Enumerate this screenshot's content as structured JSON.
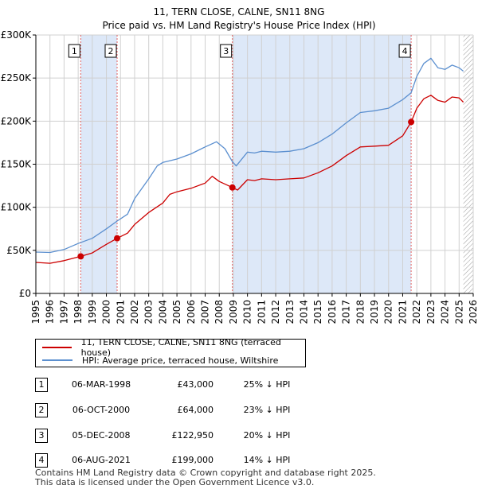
{
  "chart_data": {
    "type": "line",
    "title": "11, TERN CLOSE, CALNE, SN11 8NG",
    "subtitle": "Price paid vs. HM Land Registry's House Price Index (HPI)",
    "xlabel": "",
    "ylabel": "",
    "xlim": [
      1995,
      2026
    ],
    "ylim": [
      0,
      300000
    ],
    "x_ticks": [
      "1995",
      "1996",
      "1997",
      "1998",
      "1999",
      "2000",
      "2001",
      "2002",
      "2003",
      "2004",
      "2005",
      "2006",
      "2007",
      "2008",
      "2009",
      "2010",
      "2011",
      "2012",
      "2013",
      "2014",
      "2015",
      "2016",
      "2017",
      "2018",
      "2019",
      "2020",
      "2021",
      "2022",
      "2023",
      "2024",
      "2025",
      "2026"
    ],
    "y_ticks": [
      {
        "value": 0,
        "label": "£0"
      },
      {
        "value": 50000,
        "label": "£50K"
      },
      {
        "value": 100000,
        "label": "£100K"
      },
      {
        "value": 150000,
        "label": "£150K"
      },
      {
        "value": 200000,
        "label": "£200K"
      },
      {
        "value": 250000,
        "label": "£250K"
      },
      {
        "value": 300000,
        "label": "£300K"
      }
    ],
    "grid": true,
    "series": [
      {
        "name": "11, TERN CLOSE, CALNE, SN11 8NG (terraced house)",
        "color": "#cc0000",
        "x": [
          1995.0,
          1996.0,
          1997.0,
          1998.18,
          1999.0,
          2000.0,
          2000.76,
          2001.5,
          2002.0,
          2003.0,
          2004.0,
          2004.5,
          2005.0,
          2006.0,
          2007.0,
          2007.5,
          2008.0,
          2008.93,
          2009.3,
          2010.0,
          2010.5,
          2011.0,
          2012.0,
          2013.0,
          2014.0,
          2015.0,
          2016.0,
          2017.0,
          2018.0,
          2019.0,
          2020.0,
          2021.0,
          2021.6,
          2022.0,
          2022.5,
          2023.0,
          2023.5,
          2024.0,
          2024.5,
          2025.0,
          2025.3
        ],
        "values": [
          36000,
          35000,
          38000,
          43000,
          47000,
          57000,
          64000,
          70000,
          80000,
          94000,
          105000,
          115000,
          118000,
          122000,
          128000,
          136000,
          130000,
          122950,
          120000,
          132000,
          131000,
          133000,
          132000,
          133000,
          134000,
          140000,
          148000,
          160000,
          170000,
          171000,
          172000,
          183000,
          199000,
          215000,
          226000,
          230000,
          224000,
          222000,
          228000,
          227000,
          222000
        ]
      },
      {
        "name": "HPI: Average price, terraced house, Wiltshire",
        "color": "#5b8fcf",
        "x": [
          1995.0,
          1996.0,
          1997.0,
          1998.0,
          1999.0,
          2000.0,
          2000.76,
          2001.5,
          2002.0,
          2003.0,
          2003.6,
          2004.0,
          2005.0,
          2006.0,
          2007.0,
          2007.8,
          2008.4,
          2008.93,
          2009.2,
          2010.0,
          2010.5,
          2011.0,
          2012.0,
          2013.0,
          2014.0,
          2015.0,
          2016.0,
          2017.0,
          2018.0,
          2019.0,
          2020.0,
          2021.0,
          2021.6,
          2022.0,
          2022.5,
          2023.0,
          2023.5,
          2024.0,
          2024.5,
          2025.0,
          2025.3
        ],
        "values": [
          48000,
          47500,
          51000,
          58000,
          64000,
          75000,
          84000,
          92000,
          110000,
          133000,
          148000,
          152000,
          156000,
          162000,
          170000,
          176000,
          168000,
          153000,
          148000,
          164000,
          163000,
          165000,
          164000,
          165000,
          168000,
          175000,
          185000,
          198000,
          210000,
          212000,
          215000,
          225000,
          233000,
          252000,
          267000,
          273000,
          262000,
          260000,
          265000,
          262000,
          258000
        ]
      }
    ],
    "sales": [
      {
        "num": "1",
        "x": 1998.18,
        "value": 43000,
        "date": "06-MAR-1998",
        "price": "£43,000",
        "hpi": "25% ↓ HPI"
      },
      {
        "num": "2",
        "x": 2000.76,
        "value": 64000,
        "date": "06-OCT-2000",
        "price": "£64,000",
        "hpi": "23% ↓ HPI"
      },
      {
        "num": "3",
        "x": 2008.93,
        "value": 122950,
        "date": "05-DEC-2008",
        "price": "£122,950",
        "hpi": "20% ↓ HPI"
      },
      {
        "num": "4",
        "x": 2021.6,
        "value": 199000,
        "date": "06-AUG-2021",
        "price": "£199,000",
        "hpi": "14% ↓ HPI"
      }
    ],
    "shaded_periods": [
      [
        1998.18,
        2000.76
      ],
      [
        2008.93,
        2021.6
      ]
    ],
    "hatch_from": 2025.3,
    "colors": {
      "property": "#cc0000",
      "hpi": "#5b8fcf",
      "vline": "#e06060",
      "shade": "#dde8f8",
      "grid": "#d0d0d0"
    }
  },
  "legend": {
    "property_label": "11, TERN CLOSE, CALNE, SN11 8NG (terraced house)",
    "hpi_label": "HPI: Average price, terraced house, Wiltshire"
  },
  "footer": {
    "line1": "Contains HM Land Registry data © Crown copyright and database right 2025.",
    "line2": "This data is licensed under the Open Government Licence v3.0."
  }
}
